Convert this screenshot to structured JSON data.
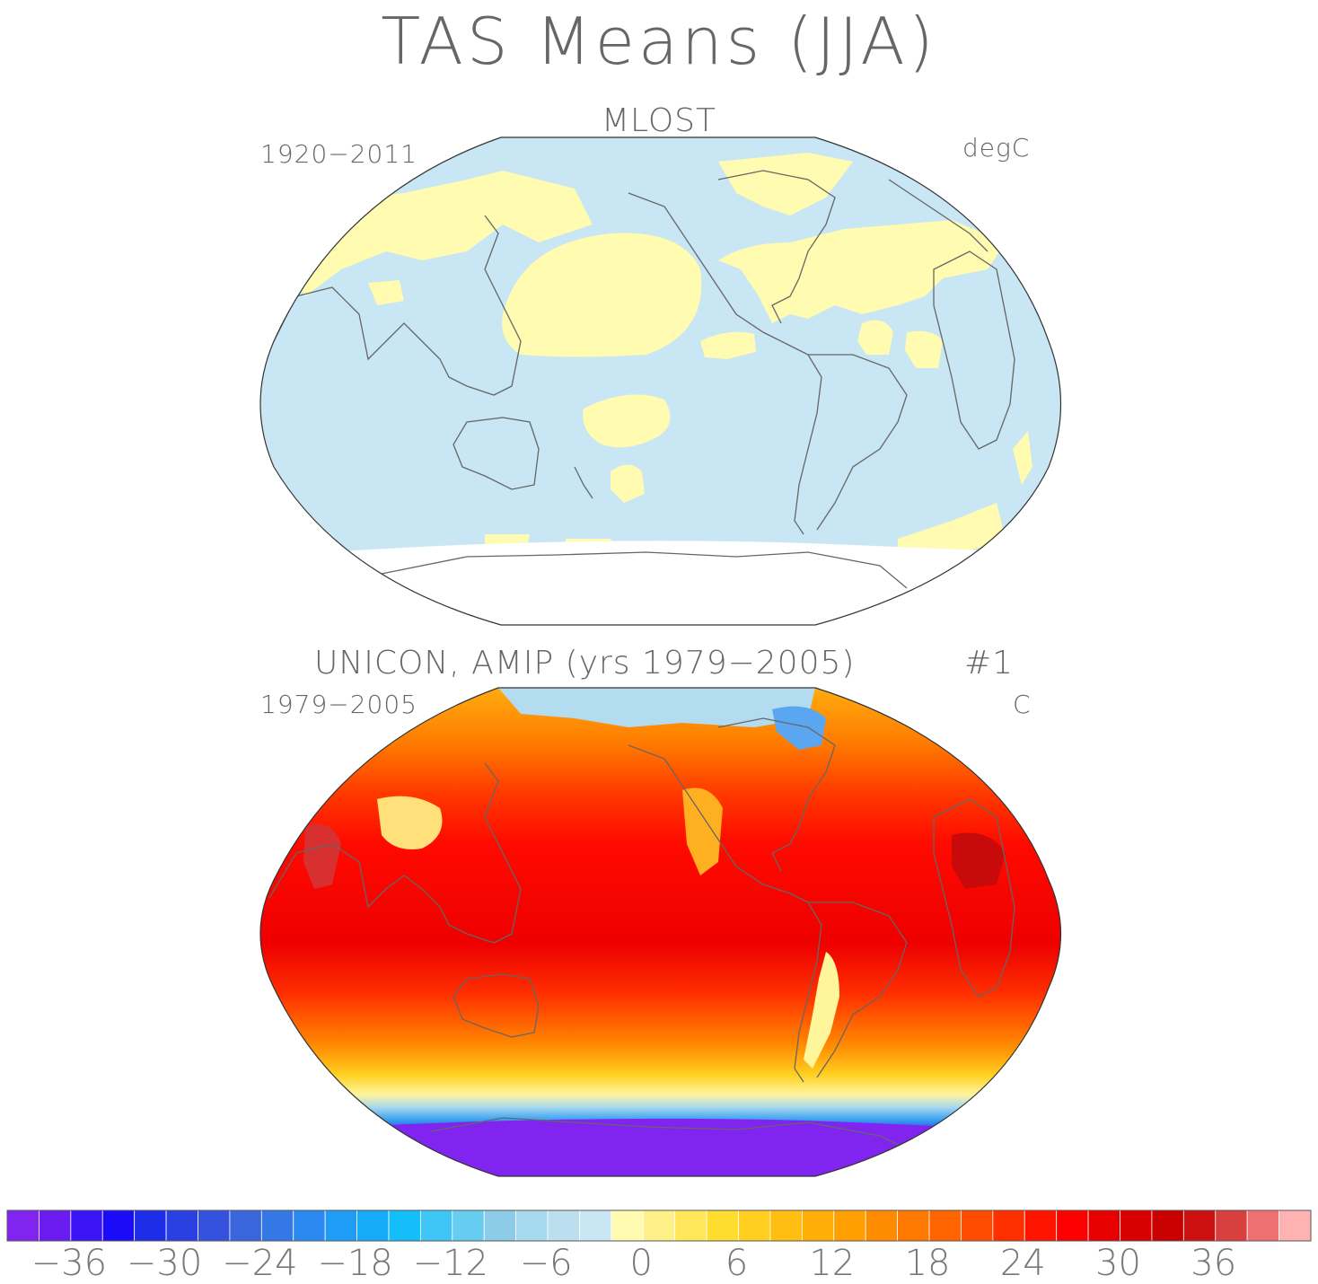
{
  "main_title": "TAS Means (JJA)",
  "panel1": {
    "title": "MLOST",
    "left_label": "1920−2011",
    "right_label": "degC"
  },
  "panel2": {
    "title": "UNICON, AMIP (yrs 1979−2005)",
    "title_suffix": "#1",
    "left_label": "1979−2005",
    "right_label": "C"
  },
  "colorbar": {
    "tick_labels": [
      "−36",
      "−30",
      "−24",
      "−18",
      "−12",
      "−6",
      "0",
      "6",
      "12",
      "18",
      "24",
      "30",
      "36"
    ],
    "colors": [
      "#8224f0",
      "#6a1cf0",
      "#3a14f5",
      "#1a0cf8",
      "#1e2ee8",
      "#2a40e0",
      "#3452de",
      "#3a66dc",
      "#3478e6",
      "#2a8af2",
      "#1e9cf6",
      "#14acf8",
      "#14bef8",
      "#3ec6f6",
      "#66ccf0",
      "#8ccce9",
      "#a6d8ee",
      "#bcdff0",
      "#c8e6f4",
      "#fffbb0",
      "#fff08a",
      "#ffe65a",
      "#ffdc30",
      "#ffce1e",
      "#ffbe10",
      "#ffae08",
      "#ffa000",
      "#ff8c00",
      "#ff7800",
      "#ff6400",
      "#ff4c00",
      "#ff3000",
      "#ff1400",
      "#ff0000",
      "#e80000",
      "#d80000",
      "#c80000",
      "#cc1010",
      "#d84040",
      "#ee7070",
      "#ffb2b2"
    ]
  },
  "legend_colors": {
    "neutral_ocean": "#c8e6f4",
    "positive_light": "#fffbb0"
  }
}
